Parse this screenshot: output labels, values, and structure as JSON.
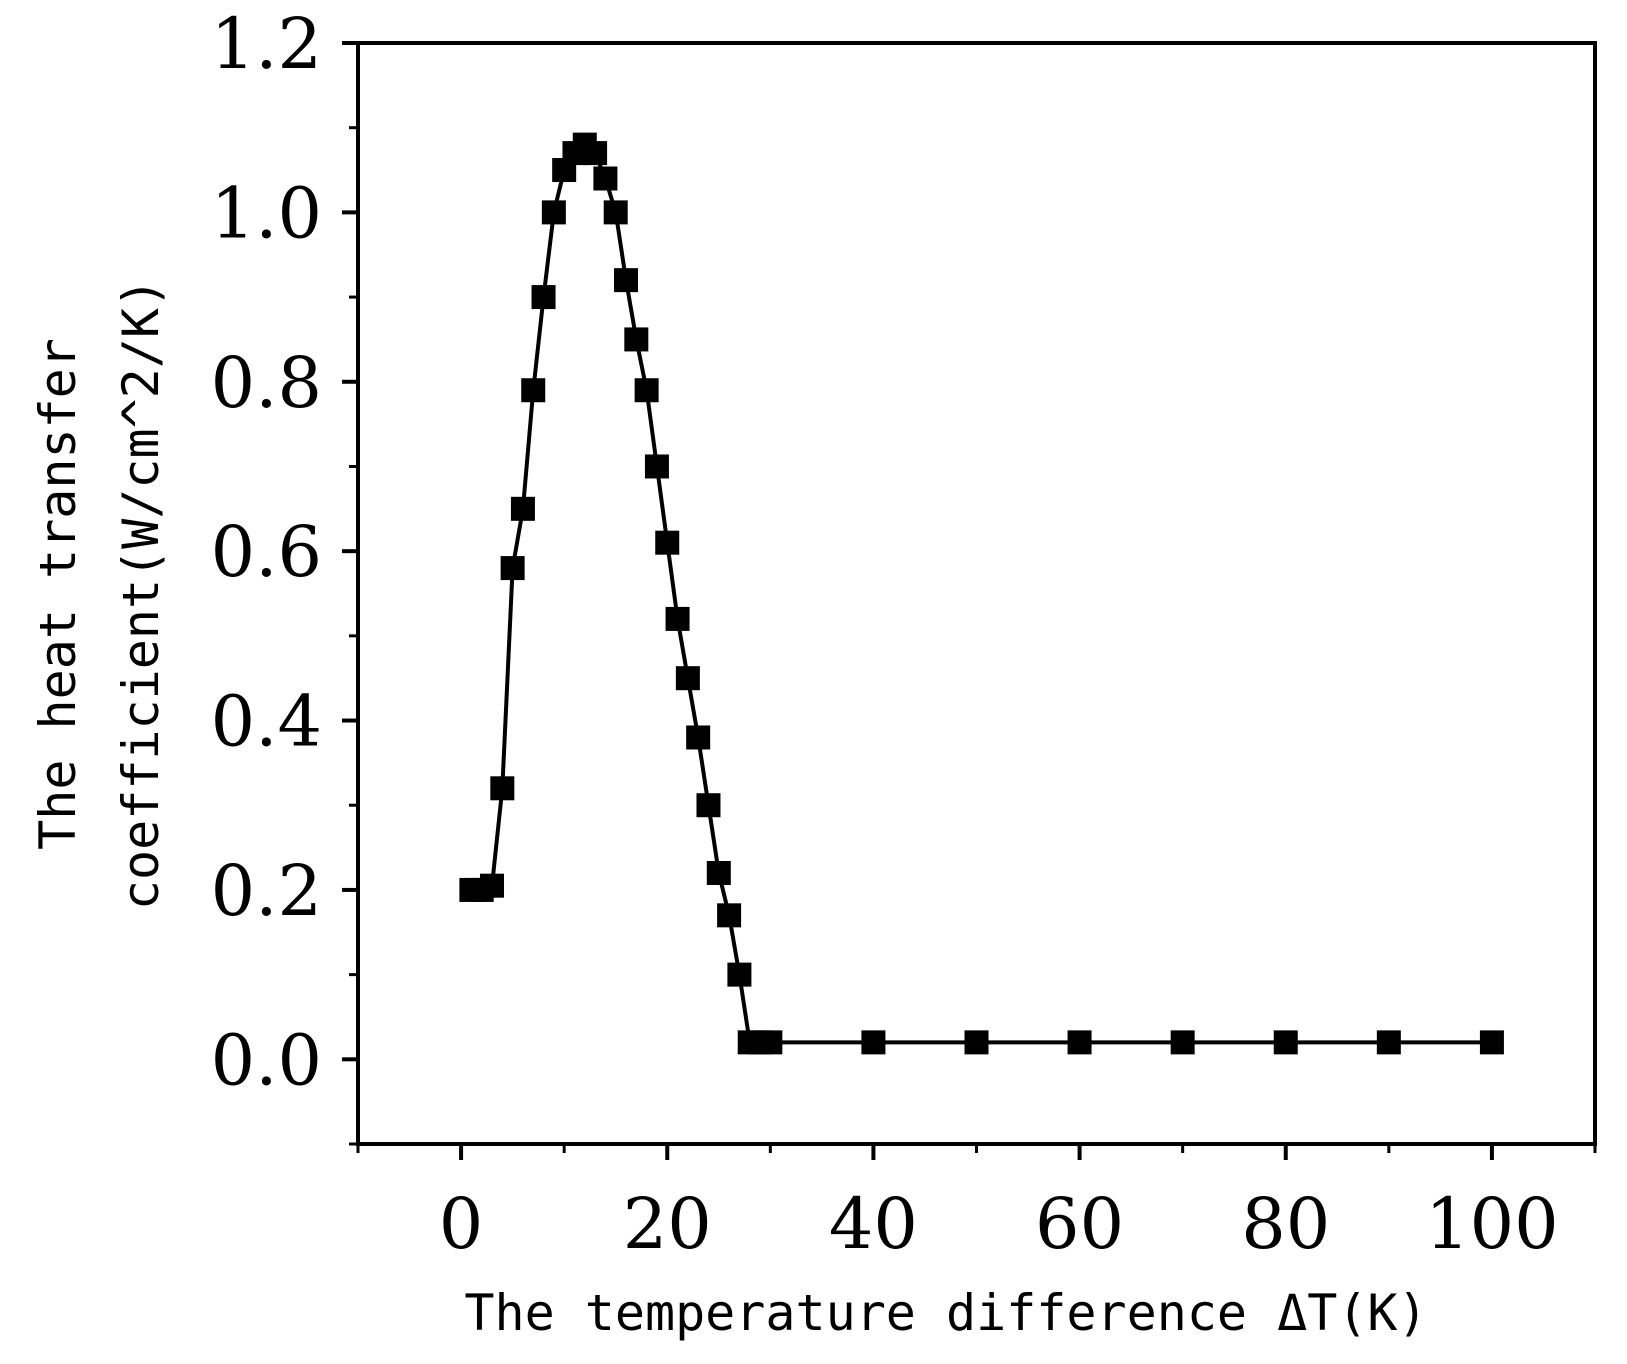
{
  "chart_data": {
    "type": "line",
    "title": "",
    "xlabel": "The temperature difference ΔT(K)",
    "ylabel_lines": [
      "The heat transfer",
      "coefficient(W/cm^2/K)"
    ],
    "xlim": [
      -10,
      110
    ],
    "ylim": [
      -0.1,
      1.2
    ],
    "xticks": [
      0,
      20,
      40,
      60,
      80,
      100
    ],
    "xtick_labels": [
      "0",
      "20",
      "40",
      "60",
      "80",
      "100"
    ],
    "yticks": [
      0.0,
      0.2,
      0.4,
      0.6,
      0.8,
      1.0,
      1.2
    ],
    "ytick_labels": [
      "0.0",
      "0.2",
      "0.4",
      "0.6",
      "0.8",
      "1.0",
      "1.2"
    ],
    "grid": false,
    "marker": "square",
    "color": "#000000",
    "series": [
      {
        "x": [
          1,
          2,
          3,
          4,
          5,
          6,
          7,
          8,
          9,
          10,
          11,
          12,
          13,
          14,
          15,
          16,
          17,
          18,
          19,
          20,
          21,
          22,
          23,
          24,
          25,
          26,
          27,
          28,
          29,
          30,
          40,
          50,
          60,
          70,
          80,
          90,
          100
        ],
        "y": [
          0.2,
          0.2,
          0.205,
          0.32,
          0.58,
          0.65,
          0.79,
          0.9,
          1.0,
          1.05,
          1.07,
          1.08,
          1.07,
          1.04,
          1.0,
          0.92,
          0.85,
          0.79,
          0.7,
          0.61,
          0.52,
          0.45,
          0.38,
          0.3,
          0.22,
          0.17,
          0.1,
          0.02,
          0.02,
          0.02,
          0.02,
          0.02,
          0.02,
          0.02,
          0.02,
          0.02,
          0.02
        ]
      }
    ]
  }
}
